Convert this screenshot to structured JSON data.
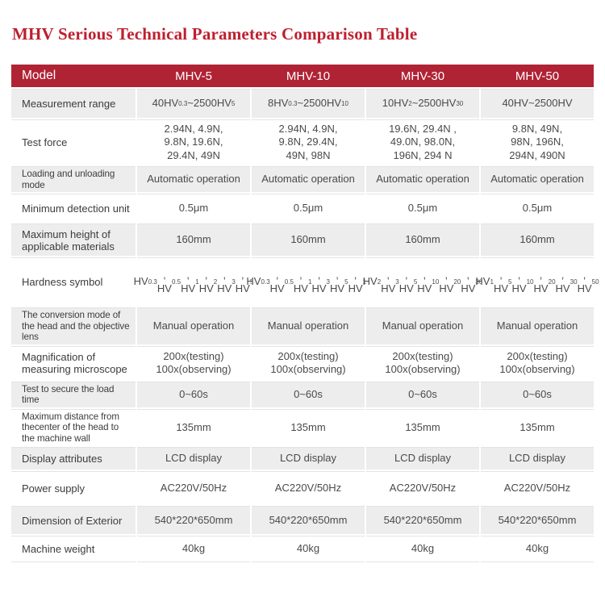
{
  "title": "MHV Serious Technical Parameters Comparison Table",
  "colors": {
    "title_red": "#bf1f2f",
    "header_bg": "#b02334",
    "header_text": "#ffffff",
    "row_bg": "#ffffff",
    "row_alt_bg": "#ededed",
    "label_text": "#3c3c3c",
    "value_text": "#4a4a4a",
    "divider": "#e3e3e3"
  },
  "table": {
    "header": [
      "Model",
      "MHV-5",
      "MHV-10",
      "MHV-30",
      "MHV-50"
    ],
    "rows": [
      {
        "label": "Measurement range",
        "values": [
          "40HV_{0.3}~2500HV_{5}",
          "8HV_{0.3}~2500HV_{10}",
          "10HV_{2}~2500HV_{30}",
          "40HV~2500HV"
        ]
      },
      {
        "label": "Test force",
        "values": [
          [
            "2.94N、4.9N、",
            "9.8N、19.6N、",
            "29.4N、49N"
          ],
          [
            "2.94N、4.9N、",
            "9.8N、29.4N、",
            "49N、98N"
          ],
          [
            "19.6N、29.4N 、",
            "49.0N、98.0N、",
            "196N、294 N"
          ],
          [
            "9.8N、49N、",
            "98N、196N、",
            "294N、490N"
          ]
        ]
      },
      {
        "label": "Loading and unloading mode",
        "values": [
          "Automatic operation",
          "Automatic operation",
          "Automatic operation",
          "Automatic operation"
        ]
      },
      {
        "label": "Minimum detection unit",
        "values": [
          "0.5μm",
          "0.5μm",
          "0.5μm",
          "0.5μm"
        ]
      },
      {
        "label": "Maximum height of applicable materials",
        "values": [
          "160mm",
          "160mm",
          "160mm",
          "160mm"
        ]
      },
      {
        "label": "Hardness symbol",
        "values": [
          [
            "HV_{0.3}、HV_{0.5}、",
            "HV_{1}、HV_{2}、",
            "HV_{3}、HV_{5}"
          ],
          [
            "HV_{0.3}、HV_{0.5}、",
            "HV_{1}、HV_{3}、",
            "HV_{5}、HV_{10}"
          ],
          [
            "HV_{2}、HV_{3}、",
            "HV_{5}、HV_{10}、",
            "HV_{20}、HV_{30}"
          ],
          [
            "HV_{1}、HV_{5}、",
            "HV_{10}、HV_{20}、",
            "HV_{30}、HV_{50}"
          ]
        ]
      },
      {
        "label": "The conversion mode of the head and the objective lens",
        "values": [
          "Manual operation",
          "Manual operation",
          "Manual operation",
          "Manual operation"
        ]
      },
      {
        "label": "Magnification of measuring microscope",
        "values": [
          [
            "200x(testing)",
            "100x(observing)"
          ],
          [
            "200x(testing)",
            "100x(observing)"
          ],
          [
            "200x(testing)",
            "100x(observing)"
          ],
          [
            "200x(testing)",
            "100x(observing)"
          ]
        ]
      },
      {
        "label": "Test to secure the load time",
        "values": [
          "0~60s",
          "0~60s",
          "0~60s",
          "0~60s"
        ]
      },
      {
        "label": "Maximum distance from thecenter of the head to the machine wall",
        "values": [
          "135mm",
          "135mm",
          "135mm",
          "135mm"
        ]
      },
      {
        "label": "Display attributes",
        "values": [
          "LCD display",
          "LCD display",
          "LCD display",
          "LCD display"
        ]
      },
      {
        "label": "Power supply",
        "values": [
          "AC220V/50Hz",
          "AC220V/50Hz",
          "AC220V/50Hz",
          "AC220V/50Hz"
        ]
      },
      {
        "label": "Dimension of Exterior",
        "values": [
          "540*220*650mm",
          "540*220*650mm",
          "540*220*650mm",
          "540*220*650mm"
        ]
      },
      {
        "label": "Machine weight",
        "values": [
          "40kg",
          "40kg",
          "40kg",
          "40kg"
        ]
      }
    ]
  }
}
